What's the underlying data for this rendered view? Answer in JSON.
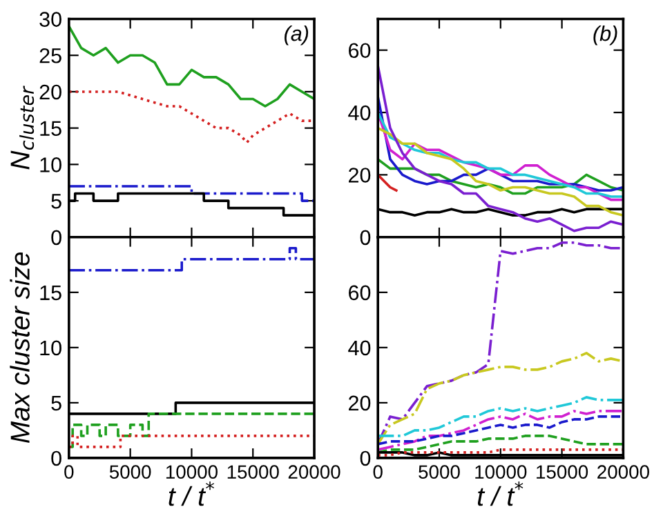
{
  "chart_data": [
    {
      "type": "line",
      "ylabel": "N$_{cluster}$",
      "annotations": [
        "(a)"
      ],
      "xlim": [
        0,
        20000
      ],
      "xticks": [
        0,
        5000,
        10000,
        15000,
        20000
      ],
      "ylim": [
        0,
        30
      ],
      "yticks": [
        0,
        5,
        10,
        15,
        20,
        25,
        30
      ],
      "tick_labels": "y",
      "x": [
        0,
        1000,
        2000,
        3000,
        4000,
        5000,
        6000,
        7000,
        8000,
        9000,
        10000,
        11000,
        12000,
        13000,
        14000,
        15000,
        16000,
        17000,
        18000,
        19000,
        20000
      ],
      "series": [
        {
          "color": "#1fa01f",
          "line_style": "solid",
          "values": [
            29,
            26,
            25,
            26,
            24,
            25,
            25,
            24,
            21,
            21,
            23,
            22,
            22,
            21,
            19,
            19,
            18,
            19,
            21,
            20,
            19
          ]
        },
        {
          "color": "#d42020",
          "line_style": "dotted",
          "x": [
            0,
            2000,
            4000,
            6000,
            8000,
            9000,
            10000,
            11000,
            12000,
            13000,
            14000,
            14500,
            15000,
            16000,
            17000,
            18000,
            19000,
            20000
          ],
          "values": [
            20,
            20,
            20,
            19,
            18,
            18,
            17,
            16,
            15,
            15,
            14,
            13,
            14,
            15,
            16,
            17,
            16,
            16
          ]
        },
        {
          "type": "step",
          "color": "#1a1acc",
          "line_style": "dashdot",
          "x": [
            0,
            10000,
            19000,
            20000
          ],
          "values": [
            7,
            6,
            5,
            5
          ]
        },
        {
          "type": "step",
          "color": "#000000",
          "line_style": "solid",
          "x": [
            0,
            500,
            2000,
            4000,
            11000,
            13000,
            17500,
            20000
          ],
          "values": [
            5,
            6,
            5,
            6,
            5,
            4,
            3,
            3
          ]
        }
      ]
    },
    {
      "type": "line",
      "annotations": [
        "(b)"
      ],
      "xlim": [
        0,
        20000
      ],
      "xticks": [
        0,
        5000,
        10000,
        15000,
        20000
      ],
      "ylim": [
        0,
        70
      ],
      "yticks": [
        0,
        20,
        40,
        60
      ],
      "tick_labels": "y",
      "x": [
        0,
        1000,
        2000,
        3000,
        4000,
        5000,
        6000,
        7000,
        8000,
        9000,
        10000,
        11000,
        12000,
        13000,
        14000,
        15000,
        16000,
        17000,
        18000,
        19000,
        20000
      ],
      "series": [
        {
          "color": "#000000",
          "values": [
            9,
            8,
            8,
            7,
            8,
            8,
            9,
            8,
            8,
            9,
            8,
            7,
            7,
            8,
            8,
            9,
            8,
            9,
            9,
            9,
            9
          ]
        },
        {
          "color": "#d42020",
          "x": [
            0,
            500,
            1000,
            1500
          ],
          "values": [
            20,
            18,
            16,
            15
          ]
        },
        {
          "color": "#1fa01f",
          "values": [
            25,
            22,
            22,
            22,
            20,
            20,
            18,
            17,
            16,
            17,
            16,
            14,
            14,
            16,
            16,
            16,
            17,
            20,
            18,
            16,
            15
          ]
        },
        {
          "color": "#1a1acc",
          "values": [
            45,
            25,
            20,
            18,
            17,
            18,
            18,
            20,
            20,
            22,
            20,
            18,
            18,
            18,
            17,
            17,
            17,
            16,
            15,
            15,
            16
          ]
        },
        {
          "color": "#d020d0",
          "values": [
            40,
            28,
            25,
            30,
            28,
            28,
            26,
            24,
            23,
            22,
            20,
            20,
            23,
            23,
            20,
            18,
            16,
            16,
            14,
            12,
            12
          ]
        },
        {
          "color": "#20c8d8",
          "values": [
            40,
            32,
            30,
            28,
            27,
            27,
            25,
            24,
            24,
            22,
            22,
            20,
            20,
            19,
            18,
            17,
            16,
            14,
            14,
            13,
            13
          ]
        },
        {
          "color": "#c8c820",
          "values": [
            35,
            33,
            30,
            30,
            27,
            26,
            25,
            22,
            18,
            17,
            15,
            16,
            16,
            15,
            14,
            14,
            13,
            10,
            10,
            8,
            7
          ]
        },
        {
          "color": "#7a1fd0",
          "values": [
            55,
            35,
            27,
            22,
            20,
            18,
            17,
            14,
            14,
            10,
            9,
            8,
            6,
            5,
            6,
            4,
            2,
            3,
            3,
            5,
            4
          ]
        }
      ]
    },
    {
      "type": "step",
      "ylabel": "Max cluster size",
      "xlabel": "t / t$^{*}$",
      "xlim": [
        0,
        20000
      ],
      "xticks": [
        0,
        5000,
        10000,
        15000,
        20000
      ],
      "ylim": [
        0,
        20
      ],
      "yticks": [
        0,
        5,
        10,
        15
      ],
      "series": [
        {
          "color": "#1a1acc",
          "line_style": "dashdot",
          "x": [
            0,
            9200,
            18000,
            18500,
            20000
          ],
          "values": [
            17,
            18,
            19,
            18,
            18
          ]
        },
        {
          "color": "#000000",
          "line_style": "solid",
          "x": [
            0,
            8700,
            20000
          ],
          "values": [
            4,
            5,
            5
          ]
        },
        {
          "color": "#1fa01f",
          "line_style": "dashed",
          "x": [
            0,
            300,
            1000,
            1500,
            2500,
            3000,
            4000,
            5000,
            6000,
            6500,
            20000
          ],
          "values": [
            1,
            3,
            2,
            3,
            2,
            3,
            2,
            3,
            2,
            4,
            4
          ]
        },
        {
          "color": "#d42020",
          "line_style": "dotted",
          "x": [
            0,
            300,
            700,
            4200,
            8200,
            20000
          ],
          "values": [
            1,
            2,
            1,
            2,
            2,
            2
          ]
        }
      ]
    },
    {
      "type": "line",
      "xlabel": "t / t$^{*}$",
      "xlim": [
        0,
        20000
      ],
      "xticks": [
        0,
        5000,
        10000,
        15000,
        20000
      ],
      "ylim": [
        0,
        80
      ],
      "yticks": [
        0,
        20,
        40,
        60
      ],
      "x": [
        0,
        1000,
        2000,
        3000,
        4000,
        5000,
        6000,
        7000,
        8000,
        9000,
        10000,
        11000,
        12000,
        13000,
        14000,
        15000,
        16000,
        17000,
        18000,
        19000,
        20000
      ],
      "series": [
        {
          "color": "#7a1fd0",
          "line_style": "dashdot",
          "values": [
            5,
            15,
            14,
            20,
            26,
            27,
            28,
            30,
            31,
            34,
            75,
            74,
            75,
            76,
            76,
            78,
            78,
            77,
            77,
            76,
            76
          ]
        },
        {
          "color": "#c8c820",
          "line_style": "dashdot",
          "values": [
            5,
            12,
            14,
            16,
            25,
            27,
            28,
            30,
            31,
            32,
            33,
            33,
            32,
            32,
            33,
            35,
            36,
            38,
            35,
            36,
            35
          ]
        },
        {
          "color": "#20c8d8",
          "line_style": "dashdot",
          "values": [
            8,
            8,
            8,
            10,
            10,
            11,
            13,
            15,
            15,
            17,
            18,
            17,
            18,
            17,
            18,
            19,
            20,
            22,
            21,
            21,
            21
          ]
        },
        {
          "color": "#d020d0",
          "line_style": "dashdot",
          "values": [
            3,
            4,
            5,
            6,
            8,
            8,
            9,
            10,
            12,
            14,
            15,
            14,
            16,
            14,
            15,
            15,
            17,
            16,
            17,
            17,
            17
          ]
        },
        {
          "color": "#1a1acc",
          "line_style": "dashed",
          "values": [
            5,
            6,
            6,
            6,
            7,
            8,
            8,
            9,
            10,
            11,
            12,
            11,
            12,
            12,
            11,
            13,
            14,
            14,
            15,
            15,
            15
          ]
        },
        {
          "color": "#1fa01f",
          "line_style": "dashed",
          "values": [
            2,
            3,
            3,
            3,
            4,
            5,
            6,
            6,
            6,
            7,
            7,
            7,
            8,
            8,
            8,
            7,
            6,
            5,
            5,
            5,
            5
          ]
        },
        {
          "color": "#000000",
          "line_style": "solid",
          "values": [
            2,
            2,
            2,
            1,
            1,
            2,
            1,
            1,
            1,
            1,
            1,
            1,
            1,
            1,
            1,
            1,
            1,
            1,
            1,
            1,
            1
          ]
        },
        {
          "color": "#d42020",
          "line_style": "dotted",
          "values": [
            1,
            1,
            2,
            2,
            2,
            2,
            2,
            2,
            2,
            2,
            3,
            3,
            3,
            3,
            3,
            3,
            3,
            3,
            3,
            3,
            3
          ]
        }
      ]
    }
  ]
}
